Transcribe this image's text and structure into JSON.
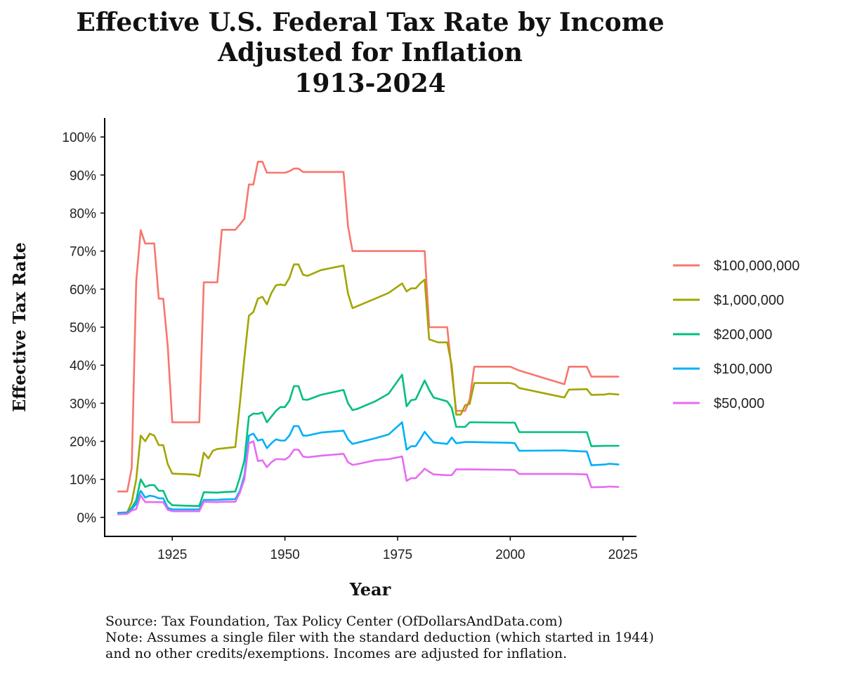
{
  "chart_data": {
    "type": "line",
    "title_lines": [
      "Effective U.S. Federal Tax Rate by Income",
      "Adjusted for Inflation",
      "1913-2024"
    ],
    "xlabel": "Year",
    "ylabel": "Effective Tax Rate",
    "xlim": [
      1910,
      2028
    ],
    "ylim": [
      -5,
      105
    ],
    "x_ticks": [
      1925,
      1950,
      1975,
      2000,
      2025
    ],
    "x_tick_labels": [
      "1925",
      "1950",
      "1975",
      "2000",
      "2025"
    ],
    "y_ticks": [
      0,
      10,
      20,
      30,
      40,
      50,
      60,
      70,
      80,
      90,
      100
    ],
    "y_tick_labels": [
      "0%",
      "10%",
      "20%",
      "30%",
      "40%",
      "50%",
      "60%",
      "70%",
      "80%",
      "90%",
      "100%"
    ],
    "grid": false,
    "legend_position": "right",
    "footnotes": [
      "Source: Tax Foundation, Tax Policy Center (OfDollarsAndData.com)",
      "Note: Assumes a single filer with the standard deduction (which started in 1944)",
      "and no other credits/exemptions. Incomes are adjusted for inflation."
    ],
    "series": [
      {
        "name": "$100,000,000",
        "color": "#F8766D",
        "x": [
          1913,
          1915,
          1916,
          1917,
          1918,
          1919,
          1920,
          1921,
          1922,
          1923,
          1924,
          1925,
          1930,
          1931,
          1932,
          1935,
          1936,
          1939,
          1940,
          1941,
          1942,
          1943,
          1944,
          1945,
          1946,
          1950,
          1951,
          1952,
          1953,
          1954,
          1963,
          1964,
          1965,
          1981,
          1982,
          1986,
          1987,
          1988,
          1990,
          1991,
          1992,
          2000,
          2001,
          2002,
          2012,
          2013,
          2017,
          2018,
          2024
        ],
        "y": [
          6.8,
          6.8,
          13,
          62,
          75.5,
          72,
          72,
          72,
          57.5,
          57.5,
          45,
          25,
          25,
          25,
          61.8,
          61.8,
          75.6,
          75.6,
          77,
          78.5,
          87.5,
          87.5,
          93.5,
          93.5,
          90.6,
          90.6,
          91,
          91.7,
          91.7,
          90.8,
          90.8,
          76.5,
          70,
          70,
          50,
          50,
          38.5,
          28,
          28,
          31,
          39.6,
          39.6,
          39.1,
          38.6,
          35,
          39.6,
          39.6,
          37,
          37
        ]
      },
      {
        "name": "$1,000,000",
        "color": "#A3A500",
        "x": [
          1913,
          1915,
          1916,
          1917,
          1918,
          1919,
          1920,
          1921,
          1922,
          1923,
          1924,
          1925,
          1929,
          1930,
          1931,
          1932,
          1933,
          1934,
          1935,
          1936,
          1939,
          1940,
          1941,
          1942,
          1943,
          1944,
          1945,
          1946,
          1947,
          1948,
          1949,
          1950,
          1951,
          1952,
          1953,
          1954,
          1955,
          1958,
          1963,
          1964,
          1965,
          1966,
          1970,
          1973,
          1976,
          1977,
          1978,
          1979,
          1980,
          1981,
          1982,
          1984,
          1986,
          1987,
          1988,
          1989,
          1990,
          1991,
          1992,
          2000,
          2001,
          2002,
          2012,
          2013,
          2017,
          2018,
          2021,
          2022,
          2024
        ],
        "y": [
          1.2,
          1.3,
          4,
          10,
          21.5,
          20,
          22,
          21.5,
          19,
          19,
          14,
          11.5,
          11.3,
          11.2,
          10.8,
          17,
          15.5,
          17.5,
          18,
          18.1,
          18.5,
          30,
          42,
          53,
          54,
          57.5,
          58,
          56,
          59,
          61,
          61.2,
          61,
          63,
          66.5,
          66.5,
          63.8,
          63.5,
          65,
          66.2,
          58.8,
          55,
          55.5,
          57.5,
          59,
          61.5,
          59.4,
          60.2,
          60.2,
          61.5,
          62.5,
          46.8,
          46,
          46,
          40,
          27,
          27,
          29.5,
          29.8,
          35.3,
          35.3,
          35,
          34,
          31.5,
          33.6,
          33.7,
          32.2,
          32.3,
          32.5,
          32.3
        ]
      },
      {
        "name": "$200,000",
        "color": "#00BF7D",
        "x": [
          1913,
          1915,
          1916,
          1917,
          1918,
          1919,
          1920,
          1921,
          1922,
          1923,
          1924,
          1925,
          1930,
          1931,
          1932,
          1935,
          1936,
          1939,
          1940,
          1941,
          1942,
          1943,
          1944,
          1945,
          1946,
          1948,
          1949,
          1950,
          1951,
          1952,
          1953,
          1954,
          1955,
          1958,
          1963,
          1964,
          1965,
          1966,
          1970,
          1973,
          1976,
          1977,
          1978,
          1979,
          1980,
          1981,
          1982,
          1983,
          1986,
          1987,
          1988,
          1990,
          1991,
          1992,
          2000,
          2001,
          2002,
          2012,
          2013,
          2017,
          2018,
          2021,
          2024
        ],
        "y": [
          1.2,
          1.3,
          2.5,
          4.5,
          10,
          8,
          8.5,
          8.5,
          7,
          7,
          4.3,
          3.2,
          3,
          3,
          6.6,
          6.5,
          6.6,
          6.8,
          10.5,
          15,
          26.5,
          27.3,
          27.2,
          27.6,
          25,
          28,
          29,
          29,
          30.7,
          34.5,
          34.5,
          31,
          30.9,
          32.2,
          33.5,
          30,
          28.2,
          28.5,
          30.5,
          32.5,
          37.5,
          29.2,
          30.8,
          31,
          33.5,
          36,
          33.5,
          31.5,
          30.5,
          28.8,
          23.8,
          23.8,
          25,
          25,
          24.9,
          24.9,
          22.4,
          22.4,
          22.4,
          22.4,
          18.7,
          18.8,
          18.8
        ]
      },
      {
        "name": "$100,000",
        "color": "#00B0F6",
        "x": [
          1913,
          1915,
          1916,
          1917,
          1918,
          1919,
          1920,
          1921,
          1922,
          1923,
          1924,
          1925,
          1930,
          1931,
          1932,
          1935,
          1936,
          1939,
          1940,
          1941,
          1942,
          1943,
          1944,
          1945,
          1946,
          1947,
          1948,
          1949,
          1950,
          1951,
          1952,
          1953,
          1954,
          1955,
          1958,
          1963,
          1964,
          1965,
          1966,
          1970,
          1973,
          1976,
          1977,
          1978,
          1979,
          1980,
          1981,
          1982,
          1983,
          1986,
          1987,
          1988,
          1990,
          1991,
          2000,
          2001,
          2002,
          2012,
          2013,
          2017,
          2018,
          2021,
          2022,
          2024
        ],
        "y": [
          1.1,
          1.2,
          2.2,
          3.5,
          7,
          5.2,
          5.7,
          5.5,
          5,
          5,
          2.5,
          2.1,
          2.1,
          2.1,
          4.6,
          4.6,
          4.7,
          4.8,
          7,
          11,
          21.5,
          22,
          20.2,
          20.5,
          18.2,
          19.5,
          20.5,
          20.2,
          20.2,
          21.5,
          24,
          24,
          21.5,
          21.5,
          22.3,
          22.8,
          20.5,
          19.3,
          19.6,
          20.8,
          21.8,
          25,
          17.8,
          18.7,
          18.7,
          20.5,
          22.5,
          21,
          19.7,
          19.3,
          21,
          19.5,
          19.8,
          19.8,
          19.6,
          19.5,
          17.5,
          17.6,
          17.5,
          17.3,
          13.7,
          13.9,
          14.1,
          13.9
        ]
      },
      {
        "name": "$50,000",
        "color": "#E76BF3",
        "x": [
          1913,
          1915,
          1916,
          1917,
          1918,
          1919,
          1920,
          1921,
          1922,
          1923,
          1924,
          1925,
          1930,
          1931,
          1932,
          1935,
          1936,
          1939,
          1940,
          1941,
          1942,
          1943,
          1944,
          1945,
          1946,
          1947,
          1948,
          1949,
          1950,
          1951,
          1952,
          1953,
          1954,
          1955,
          1958,
          1963,
          1964,
          1965,
          1966,
          1970,
          1973,
          1976,
          1977,
          1978,
          1979,
          1980,
          1981,
          1982,
          1983,
          1986,
          1987,
          1988,
          1990,
          1991,
          2000,
          2001,
          2002,
          2012,
          2013,
          2017,
          2018,
          2021,
          2022,
          2024
        ],
        "y": [
          0.8,
          0.9,
          1.8,
          2.2,
          5.8,
          4,
          4,
          4,
          4,
          4,
          2,
          1.6,
          1.6,
          1.6,
          4.1,
          4,
          4.1,
          4.1,
          6.5,
          10,
          19.5,
          20,
          14.8,
          15,
          13.2,
          14.5,
          15.3,
          15.3,
          15.2,
          16,
          17.8,
          17.8,
          16,
          15.8,
          16.2,
          16.7,
          14.5,
          13.8,
          14,
          15,
          15.3,
          16,
          9.6,
          10.3,
          10.3,
          11.5,
          12.8,
          12,
          11.3,
          11.1,
          11.1,
          12.6,
          12.6,
          12.6,
          12.5,
          12.4,
          11.4,
          11.4,
          11.4,
          11.3,
          7.9,
          8,
          8.1,
          8
        ]
      }
    ]
  }
}
